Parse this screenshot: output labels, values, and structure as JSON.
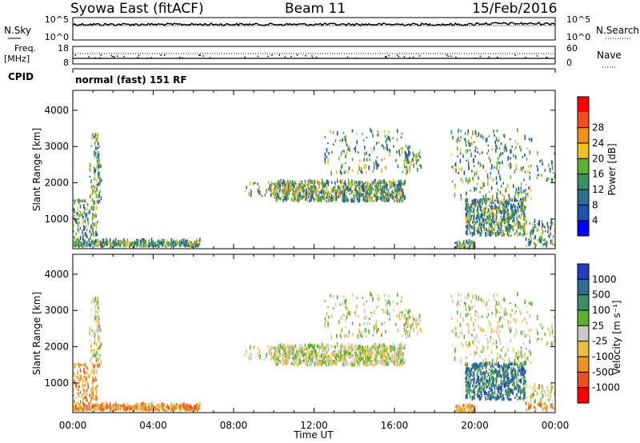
{
  "header": {
    "station": "Syowa East (fitACF)",
    "beam": "Beam 11",
    "date": "15/Feb/2016"
  },
  "panels": {
    "noise": {
      "left_label": "N.Sky",
      "right_label": "N.Search",
      "left_ticks": [
        "10^5",
        "10^0"
      ],
      "right_ticks": [
        "10^5",
        "10^0"
      ]
    },
    "freq": {
      "left_label_line1": "Freq.",
      "left_label_line2": "[MHz]",
      "right_label": "Nave",
      "left_ticks": [
        "18",
        "8"
      ],
      "right_ticks": [
        "60",
        "0"
      ]
    },
    "cpid": {
      "label": "CPID",
      "text": "normal (fast) 151 RF"
    }
  },
  "x_axis": {
    "label": "Time UT",
    "ticks": [
      "00:00",
      "04:00",
      "08:00",
      "12:00",
      "16:00",
      "20:00",
      "00:00"
    ]
  },
  "chart_data": [
    {
      "type": "heatmap",
      "name": "power",
      "ylabel": "Slant Range [km]",
      "y_ticks": [
        "1000",
        "2000",
        "3000",
        "4000"
      ],
      "ylim": [
        180,
        4550
      ],
      "colorbar": {
        "label": "Power [dB]",
        "ticks": [
          "4",
          "8",
          "12",
          "16",
          "20",
          "24",
          "28"
        ],
        "colors": [
          "#0000ff",
          "#2050b0",
          "#2f6e8e",
          "#3a8f66",
          "#5cb030",
          "#f0c020",
          "#f09020",
          "#f05020",
          "#ff0000"
        ]
      }
    },
    {
      "type": "heatmap",
      "name": "velocity",
      "ylabel": "Slant Range [km]",
      "y_ticks": [
        "1000",
        "2000",
        "3000",
        "4000"
      ],
      "ylim": [
        180,
        4550
      ],
      "colorbar": {
        "label": "Velocity [m s⁻¹]",
        "ticks": [
          "1000",
          "500",
          "100",
          "25",
          "-25",
          "-100",
          "-500",
          "-1000"
        ],
        "colors": [
          "#2040c0",
          "#2f6e8e",
          "#3a8f66",
          "#5cb030",
          "#c8c8c8",
          "#e8c040",
          "#f09020",
          "#f05020",
          "#ff0000"
        ]
      }
    }
  ]
}
